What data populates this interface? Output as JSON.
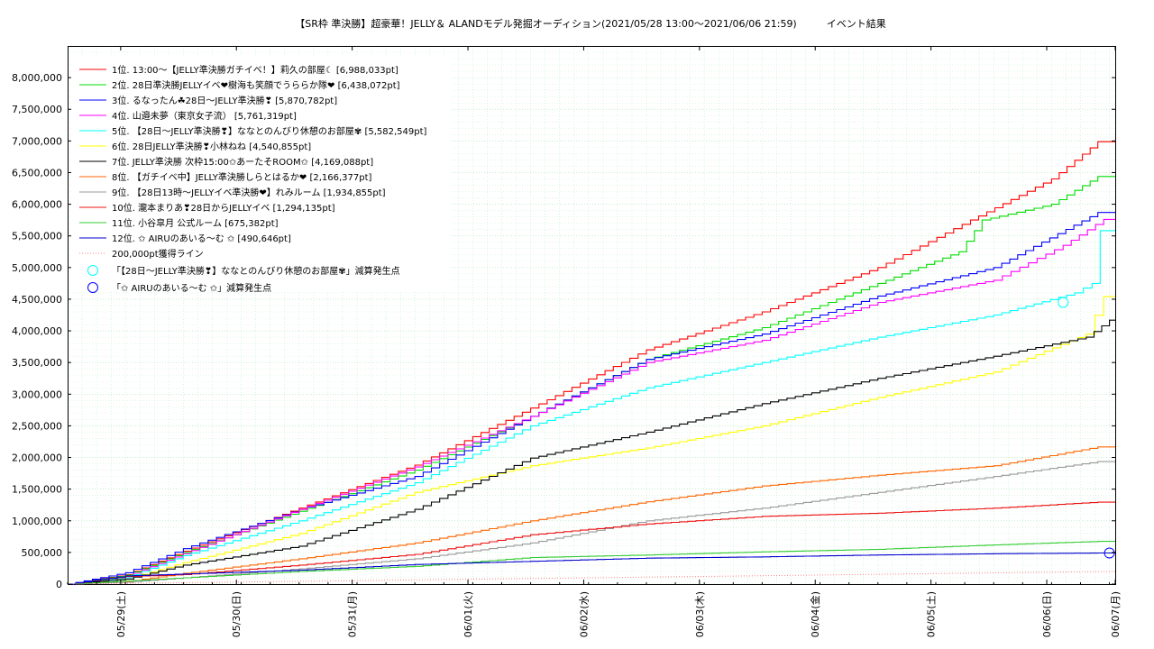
{
  "chart_data": {
    "type": "line",
    "title": "【SR枠 準決勝】超豪華！JELLY＆ ALANDモデル発掘オーディション(2021/05/28 13:00〜2021/06/06 21:59)　　　イベント結果",
    "xlabel": "",
    "ylabel": "",
    "x_ticks": [
      "05/29(土)",
      "05/30(日)",
      "05/31(月)",
      "06/01(火)",
      "06/02(水)",
      "06/03(木)",
      "06/04(金)",
      "06/05(土)",
      "06/06(日)",
      "06/07(月)"
    ],
    "xlim": [
      "2021-05-28 13:00",
      "2021-06-07 00:00"
    ],
    "ylim": [
      0,
      8500000
    ],
    "y_ticks": [
      0,
      500000,
      1000000,
      1500000,
      2000000,
      2500000,
      3000000,
      3500000,
      4000000,
      4500000,
      5000000,
      5500000,
      6000000,
      6500000,
      7000000,
      7500000,
      8000000
    ],
    "y_tick_labels": [
      "0",
      "500,000",
      "1,000,000",
      "1,500,000",
      "2,000,000",
      "2,500,000",
      "3,000,000",
      "3,500,000",
      "4,000,000",
      "4,500,000",
      "5,000,000",
      "5,500,000",
      "6,000,000",
      "6,500,000",
      "7,000,000",
      "7,500,000",
      "8,000,000"
    ],
    "grid": true,
    "legend_position": "top-left",
    "series": [
      {
        "name": "1位. 13:00〜【JELLY準決勝ガチイベ！】莉久の部屋☾ [6,988,033pt]",
        "color": "#ff0000",
        "style": "solid",
        "points": [
          [
            0,
            0
          ],
          [
            0.5,
            150000
          ],
          [
            1,
            520000
          ],
          [
            2,
            1200000
          ],
          [
            3,
            1880000
          ],
          [
            4,
            2780000
          ],
          [
            5,
            3700000
          ],
          [
            6,
            4300000
          ],
          [
            7,
            5000000
          ],
          [
            7.8,
            5750000
          ],
          [
            8.5,
            6400000
          ],
          [
            8.9,
            6988033
          ],
          [
            9.05,
            6988033
          ]
        ]
      },
      {
        "name": "2位. 28日準決勝JELLYイベ❤樹海も笑顔でうららか隊❤ [6,438,072pt]",
        "color": "#00dd00",
        "style": "solid",
        "points": [
          [
            0,
            0
          ],
          [
            0.5,
            140000
          ],
          [
            1,
            500000
          ],
          [
            2,
            1150000
          ],
          [
            3,
            1800000
          ],
          [
            4,
            2650000
          ],
          [
            5,
            3550000
          ],
          [
            6,
            4050000
          ],
          [
            7,
            4750000
          ],
          [
            7.7,
            5250000
          ],
          [
            7.9,
            5750000
          ],
          [
            8.5,
            6000000
          ],
          [
            8.9,
            6438072
          ],
          [
            9.05,
            6438072
          ]
        ]
      },
      {
        "name": "3位. るなったん☘28日〜JELLY準決勝❣ [5,870,782pt]",
        "color": "#0000ff",
        "style": "solid",
        "points": [
          [
            0,
            0
          ],
          [
            0.5,
            180000
          ],
          [
            1,
            560000
          ],
          [
            2,
            1180000
          ],
          [
            3,
            1700000
          ],
          [
            4,
            2650000
          ],
          [
            5,
            3550000
          ],
          [
            6,
            3950000
          ],
          [
            7,
            4550000
          ],
          [
            8,
            5000000
          ],
          [
            8.9,
            5870782
          ],
          [
            9.05,
            5870782
          ]
        ]
      },
      {
        "name": "4位. 山邉未夢（東京女子流） [5,761,319pt]",
        "color": "#ff00ff",
        "style": "solid",
        "points": [
          [
            0,
            0
          ],
          [
            0.5,
            120000
          ],
          [
            1,
            480000
          ],
          [
            2,
            1180000
          ],
          [
            3,
            1850000
          ],
          [
            4,
            2650000
          ],
          [
            5,
            3500000
          ],
          [
            6,
            3850000
          ],
          [
            7,
            4450000
          ],
          [
            8,
            4800000
          ],
          [
            8.6,
            5350000
          ],
          [
            8.95,
            5761319
          ],
          [
            9.05,
            5761319
          ]
        ]
      },
      {
        "name": "5位. 【28日〜JELLY準決勝❣】ななとのんびり休憩のお部屋✾ [5,582,549pt]",
        "color": "#00ffff",
        "style": "solid",
        "points": [
          [
            0,
            0
          ],
          [
            0.5,
            100000
          ],
          [
            1,
            450000
          ],
          [
            2,
            1000000
          ],
          [
            3,
            1600000
          ],
          [
            4,
            2500000
          ],
          [
            5,
            3100000
          ],
          [
            6,
            3500000
          ],
          [
            7,
            3900000
          ],
          [
            8,
            4250000
          ],
          [
            8.7,
            4600000
          ],
          [
            8.85,
            4750000
          ],
          [
            8.92,
            5582549
          ],
          [
            9.05,
            5582549
          ]
        ]
      },
      {
        "name": "6位. 28日JELLY準決勝❣小林ねね [4,540,855pt]",
        "color": "#ffff00",
        "style": "solid",
        "points": [
          [
            0,
            0
          ],
          [
            0.5,
            80000
          ],
          [
            1,
            340000
          ],
          [
            2,
            800000
          ],
          [
            3,
            1450000
          ],
          [
            4,
            1870000
          ],
          [
            5,
            2150000
          ],
          [
            6,
            2500000
          ],
          [
            7,
            2950000
          ],
          [
            8,
            3350000
          ],
          [
            8.8,
            3950000
          ],
          [
            8.95,
            4540855
          ],
          [
            9.05,
            4540855
          ]
        ]
      },
      {
        "name": "7位. JELLY準決勝 次枠15:00✩あーたそROOM✩ [4,169,088pt]",
        "color": "#000000",
        "style": "solid",
        "points": [
          [
            0,
            0
          ],
          [
            0.5,
            80000
          ],
          [
            1,
            300000
          ],
          [
            2,
            600000
          ],
          [
            3,
            1180000
          ],
          [
            4,
            1990000
          ],
          [
            5,
            2400000
          ],
          [
            6,
            2850000
          ],
          [
            7,
            3250000
          ],
          [
            8,
            3600000
          ],
          [
            8.8,
            3900000
          ],
          [
            9,
            4169088
          ],
          [
            9.05,
            4169088
          ]
        ]
      },
      {
        "name": "8位. 【ガチイベ中】JELLY準決勝しらとはるか❤ [2,166,377pt]",
        "color": "#ff6600",
        "style": "solid",
        "points": [
          [
            0,
            0
          ],
          [
            0.5,
            40000
          ],
          [
            1,
            170000
          ],
          [
            2,
            400000
          ],
          [
            3,
            650000
          ],
          [
            4,
            1000000
          ],
          [
            5,
            1300000
          ],
          [
            6,
            1550000
          ],
          [
            7,
            1720000
          ],
          [
            8,
            1870000
          ],
          [
            8.9,
            2166377
          ],
          [
            9.05,
            2166377
          ]
        ]
      },
      {
        "name": "9位. 【28日13時〜JELLYイベ準決勝❤】れみルーム [1,934,855pt]",
        "color": "#999999",
        "style": "solid",
        "points": [
          [
            0,
            0
          ],
          [
            0.5,
            30000
          ],
          [
            1,
            100000
          ],
          [
            2,
            240000
          ],
          [
            3,
            400000
          ],
          [
            4,
            650000
          ],
          [
            5,
            1000000
          ],
          [
            6,
            1200000
          ],
          [
            7,
            1450000
          ],
          [
            8,
            1700000
          ],
          [
            8.9,
            1934855
          ],
          [
            9.05,
            1934855
          ]
        ]
      },
      {
        "name": "10位. 瀧本まりあ❣28日からJELLYイベ [1,294,135pt]",
        "color": "#ee1111",
        "style": "solid",
        "points": [
          [
            0,
            0
          ],
          [
            0.5,
            120000
          ],
          [
            1,
            150000
          ],
          [
            2,
            300000
          ],
          [
            3,
            470000
          ],
          [
            4,
            780000
          ],
          [
            5,
            950000
          ],
          [
            6,
            1070000
          ],
          [
            7,
            1120000
          ],
          [
            8,
            1200000
          ],
          [
            8.9,
            1294135
          ],
          [
            9.05,
            1294135
          ]
        ]
      },
      {
        "name": "11位. 小谷皐月 公式ルーム [675,382pt]",
        "color": "#33cc33",
        "style": "solid",
        "points": [
          [
            0,
            0
          ],
          [
            0.5,
            50000
          ],
          [
            1,
            100000
          ],
          [
            2,
            200000
          ],
          [
            3,
            280000
          ],
          [
            4,
            420000
          ],
          [
            5,
            460000
          ],
          [
            6,
            510000
          ],
          [
            7,
            550000
          ],
          [
            8,
            620000
          ],
          [
            8.9,
            675382
          ],
          [
            9.05,
            675382
          ]
        ]
      },
      {
        "name": "12位. ✩ AIRUのあいる〜む ✩ [490,646pt]",
        "color": "#0000cc",
        "style": "solid",
        "points": [
          [
            0,
            0
          ],
          [
            0.5,
            130000
          ],
          [
            1,
            160000
          ],
          [
            2,
            220000
          ],
          [
            3,
            310000
          ],
          [
            4,
            360000
          ],
          [
            5,
            410000
          ],
          [
            6,
            430000
          ],
          [
            7,
            460000
          ],
          [
            8,
            480000
          ],
          [
            8.9,
            490646
          ],
          [
            9.05,
            490646
          ]
        ]
      },
      {
        "name": "200,000pt獲得ライン",
        "color": "#ff8080",
        "style": "dotted",
        "points": [
          [
            0,
            0
          ],
          [
            9.05,
            200000
          ]
        ]
      }
    ],
    "markers": [
      {
        "name": "「【28日〜JELLY準決勝❣】ななとのんびり休憩のお部屋✾」減算発生点",
        "color": "#00ffff",
        "x": 8.6,
        "y": 4450000
      },
      {
        "name": "「✩ AIRUのあいる〜む ✩」減算発生点",
        "color": "#0000ff",
        "x": 9.0,
        "y": 490646
      }
    ]
  }
}
